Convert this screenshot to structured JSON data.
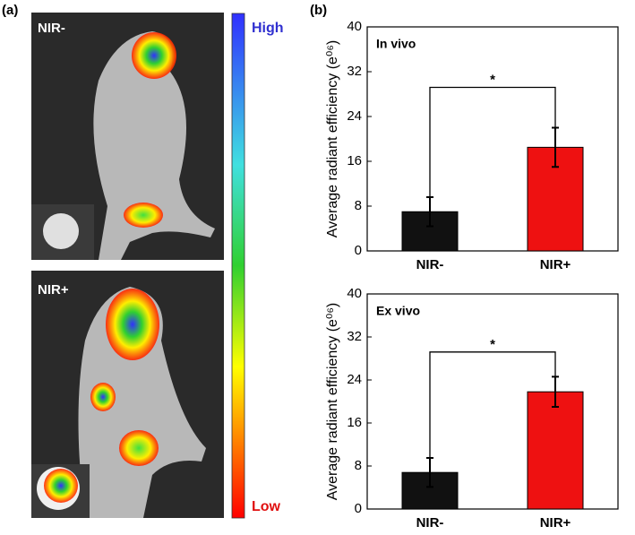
{
  "figure": {
    "panel_a": "(a)",
    "panel_b": "(b)",
    "image_labels": [
      "NIR-",
      "NIR+"
    ],
    "colorbar": {
      "high": "High",
      "low": "Low"
    }
  },
  "chart_data": [
    {
      "type": "bar",
      "title": "In vivo",
      "categories": [
        "NIR-",
        "NIR+"
      ],
      "values": [
        7.0,
        18.5
      ],
      "errors": [
        2.6,
        3.5
      ],
      "colors": [
        "#111111",
        "#ee1111"
      ],
      "ylabel": "Average radiant efficiency (e⁰⁶)",
      "ylim": [
        0,
        40
      ],
      "yticks": [
        0,
        8,
        16,
        24,
        32,
        40
      ],
      "annotation": "*"
    },
    {
      "type": "bar",
      "title": "Ex vivo",
      "categories": [
        "NIR-",
        "NIR+"
      ],
      "values": [
        6.8,
        21.8
      ],
      "errors": [
        2.7,
        2.8
      ],
      "colors": [
        "#111111",
        "#ee1111"
      ],
      "ylabel": "Average radiant efficiency (e⁰⁶)",
      "ylim": [
        0,
        40
      ],
      "yticks": [
        0,
        8,
        16,
        24,
        32,
        40
      ],
      "annotation": "*"
    }
  ]
}
